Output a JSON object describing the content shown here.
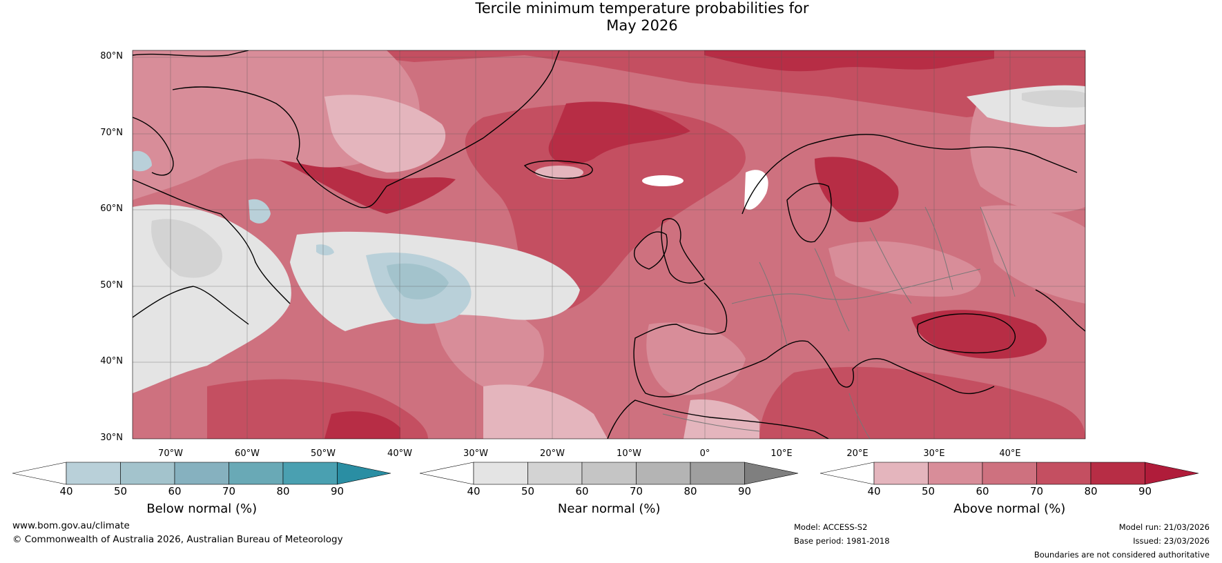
{
  "title": {
    "line1": "Tercile minimum temperature probabilities for",
    "line2": "May 2026"
  },
  "latitude_labels": [
    "80°N",
    "70°N",
    "60°N",
    "50°N",
    "40°N",
    "30°N"
  ],
  "longitude_labels": [
    "70°W",
    "60°W",
    "50°W",
    "40°W",
    "30°W",
    "20°W",
    "10°W",
    "0°",
    "10°E",
    "20°E",
    "30°E",
    "40°E"
  ],
  "colorbars": [
    {
      "label": "Below normal (%)",
      "ticks": [
        "40",
        "50",
        "60",
        "70",
        "80",
        "90"
      ],
      "colors": [
        "#ffffff",
        "#b9d0d9",
        "#a3c3cc",
        "#86b1bf",
        "#69a9b6",
        "#4aa0b1",
        "#2a8ea3"
      ]
    },
    {
      "label": "Near normal (%)",
      "ticks": [
        "40",
        "50",
        "60",
        "70",
        "80",
        "90"
      ],
      "colors": [
        "#ffffff",
        "#e4e4e4",
        "#d3d3d3",
        "#c5c5c5",
        "#b4b4b4",
        "#9f9f9f",
        "#7f7f7f"
      ]
    },
    {
      "label": "Above normal (%)",
      "ticks": [
        "40",
        "50",
        "60",
        "70",
        "80",
        "90"
      ],
      "colors": [
        "#ffffff",
        "#e4b5bd",
        "#d88d99",
        "#ce717f",
        "#c44f61",
        "#b72d45",
        "#b01c3a"
      ]
    }
  ],
  "footer": {
    "website": "www.bom.gov.au/climate",
    "copyright": "© Commonwealth of Australia 2026, Australian Bureau of Meteorology",
    "model": "Model: ACCESS-S2",
    "base_period": "Base period: 1981-2018",
    "model_run": "Model run: 21/03/2026",
    "issued": "Issued: 23/03/2026",
    "disclaimer": "Boundaries are not considered authoritative"
  }
}
